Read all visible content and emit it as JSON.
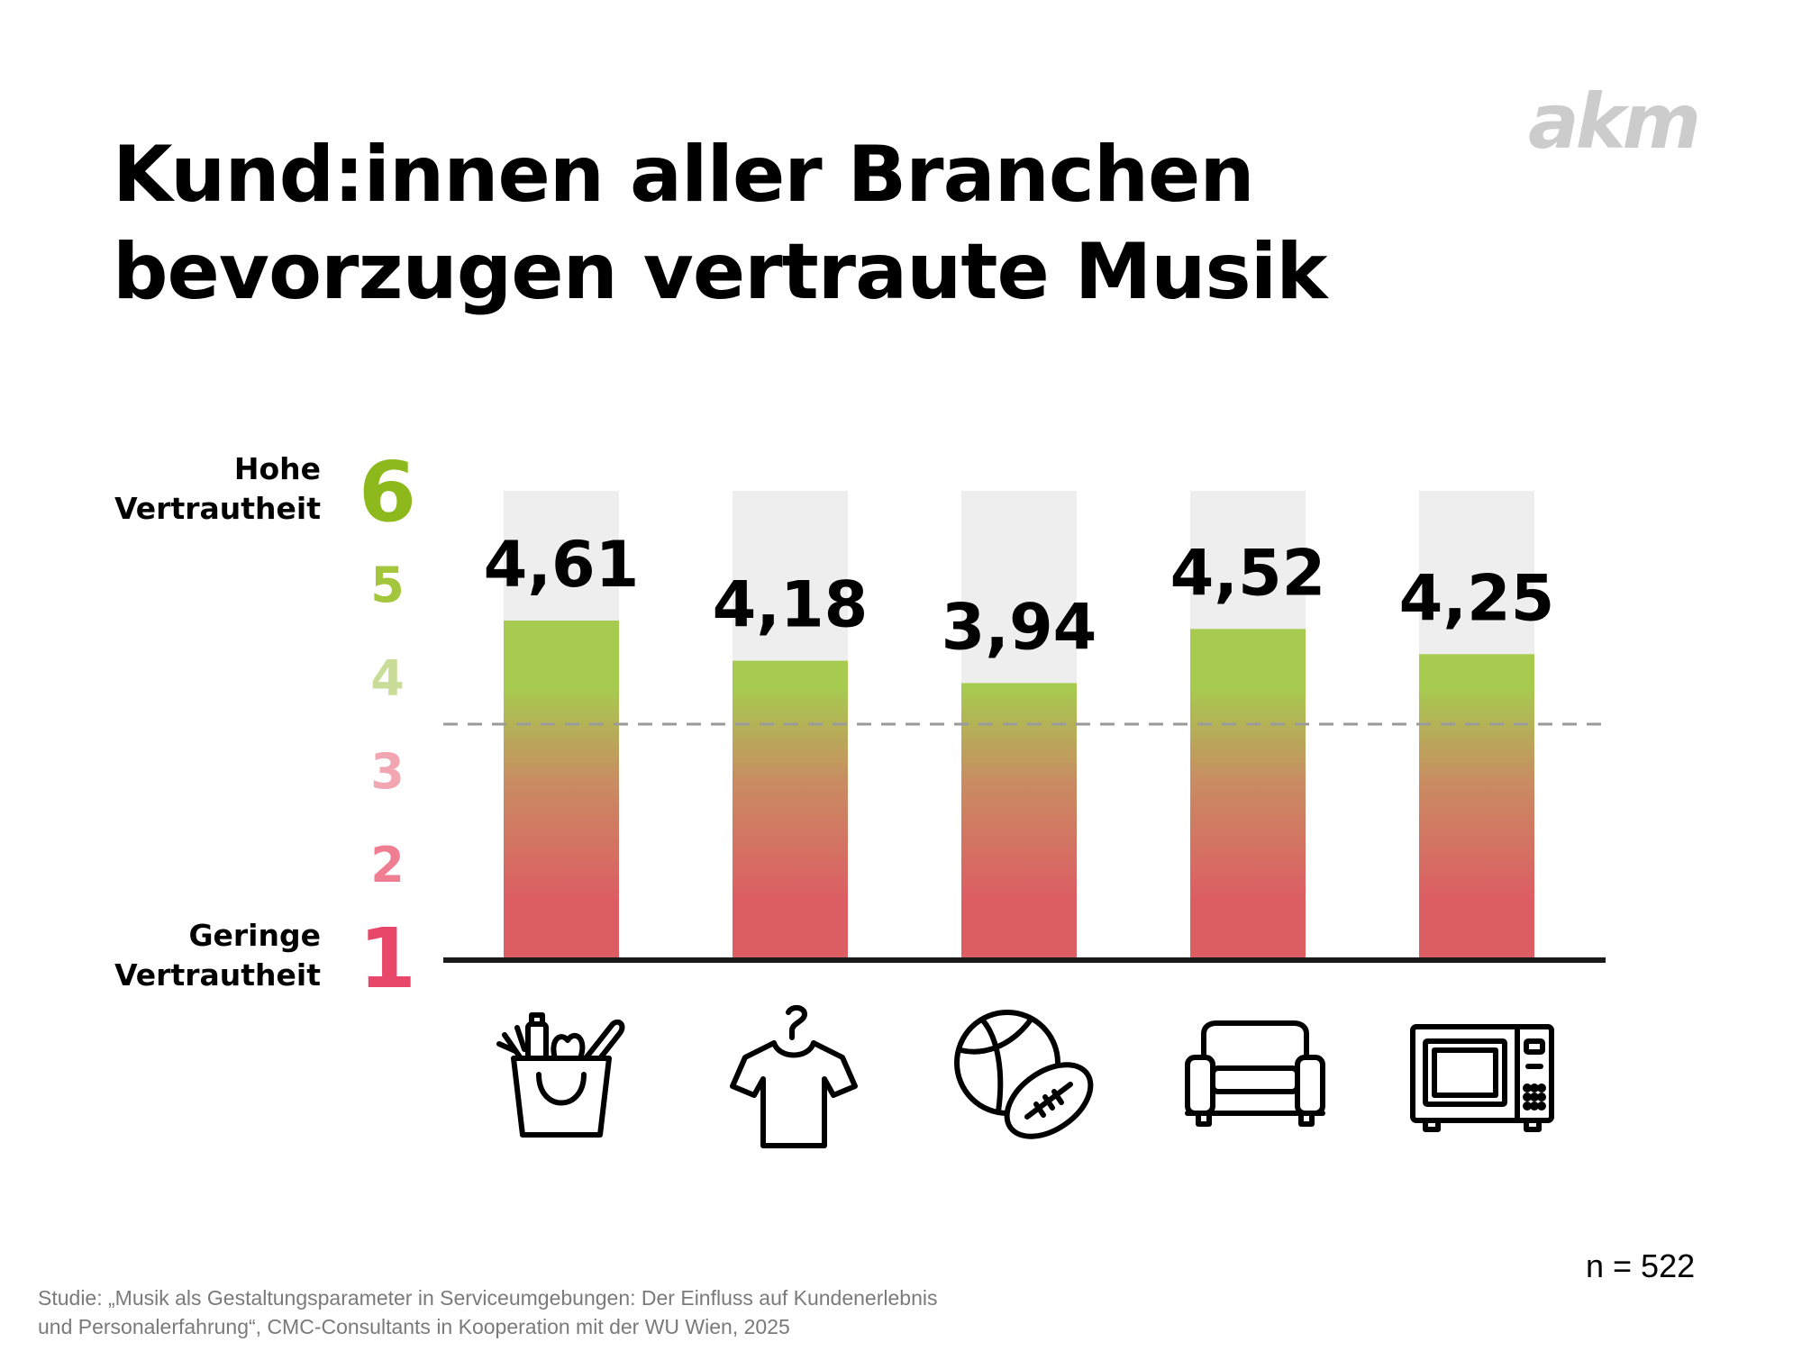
{
  "title": {
    "line1": "Kund:innen aller Branchen",
    "line2": "bevorzugen vertraute Musik"
  },
  "logo_text": "akm",
  "colors": {
    "green": "#a6cb4f",
    "red": "#dc5e63",
    "track": "#eeeeee",
    "baseline": "#1a1a1a",
    "dashed": "#9a9a9a",
    "tick_colors": [
      "#e8476a",
      "#ef7e93",
      "#f2a6b2",
      "#c9dd98",
      "#a3c63c",
      "#8db91c"
    ]
  },
  "n_label": "n = 522",
  "source": {
    "line1": "Studie: „Musik als Gestaltungsparameter in Serviceumgebungen: Der Einfluss auf Kundenerlebnis",
    "line2": "und Personalerfahrung“, CMC-Consultants in Kooperation mit der WU Wien, 2025"
  },
  "chart_data": {
    "type": "bar",
    "categories": [
      "grocery-icon",
      "clothing-icon",
      "sports-icon",
      "furniture-icon",
      "appliance-icon"
    ],
    "values": [
      4.61,
      4.18,
      3.94,
      4.52,
      4.25
    ],
    "value_labels": [
      "4,61",
      "4,18",
      "3,94",
      "4,52",
      "4,25"
    ],
    "ylim": [
      1,
      6
    ],
    "yticks": [
      "1",
      "2",
      "3",
      "4",
      "5",
      "6"
    ],
    "y_high_label": [
      "Hohe",
      "Vertrautheit"
    ],
    "y_low_label": [
      "Geringe",
      "Vertrautheit"
    ],
    "reference_line": 3.5,
    "grid": false,
    "legend": "none"
  }
}
